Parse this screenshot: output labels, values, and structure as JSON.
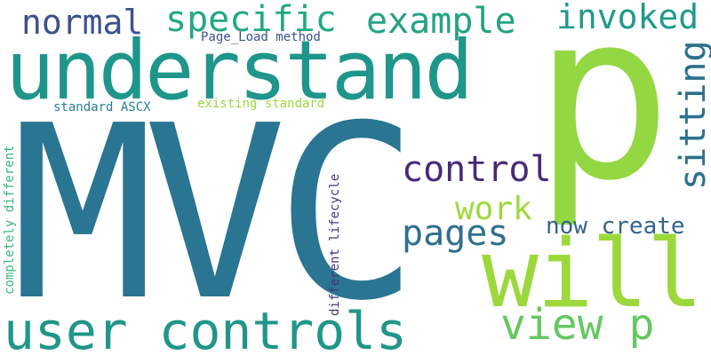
{
  "words": [
    {
      "text": "MVC",
      "color": "#2A7591"
    },
    {
      "text": "p",
      "color": "#93D742"
    },
    {
      "text": "understand",
      "color": "#1F968B"
    },
    {
      "text": "will",
      "color": "#9CD83C"
    },
    {
      "text": "user controls",
      "color": "#1F9689"
    },
    {
      "text": "view p",
      "color": "#64C860"
    },
    {
      "text": "specific",
      "color": "#22A884"
    },
    {
      "text": "example",
      "color": "#22A384"
    },
    {
      "text": "invoked",
      "color": "#1F9A8A"
    },
    {
      "text": "normal",
      "color": "#3B528B"
    },
    {
      "text": "control",
      "color": "#472A7A"
    },
    {
      "text": "sitting",
      "color": "#2C718E"
    },
    {
      "text": "pages",
      "color": "#2E6F8E"
    },
    {
      "text": "work",
      "color": "#9ED93A"
    },
    {
      "text": "now create",
      "color": "#33638D"
    },
    {
      "text": "Page_Load method",
      "color": "#3B528B"
    },
    {
      "text": "standard ASCX",
      "color": "#277F8E"
    },
    {
      "text": "existing standard",
      "color": "#9BD93C"
    },
    {
      "text": "completely different",
      "color": "#35B779"
    },
    {
      "text": "different lifecycle",
      "color": "#46327E"
    }
  ]
}
